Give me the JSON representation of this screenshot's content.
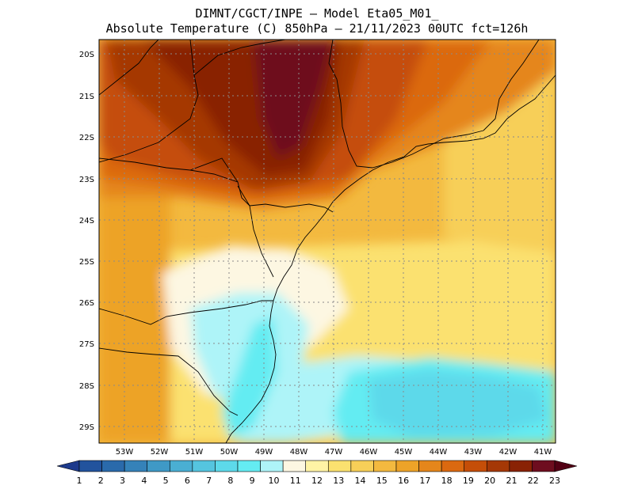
{
  "title": {
    "line1": "DIMNT/CGCT/INPE –  Model Eta05_M01_",
    "line2": "Absolute Temperature (C) 850hPa –  21/11/2023 00UTC fct=126h"
  },
  "map": {
    "variable": "Absolute Temperature (C) 850hPa",
    "lon_range": [
      -53.7,
      -40.6
    ],
    "lat_range": [
      -29.4,
      -19.8
    ],
    "lon_ticks": [
      "53W",
      "52W",
      "51W",
      "50W",
      "49W",
      "48W",
      "47W",
      "46W",
      "45W",
      "44W",
      "43W",
      "42W",
      "41W"
    ],
    "lat_ticks": [
      "20S",
      "21S",
      "22S",
      "23S",
      "24S",
      "25S",
      "26S",
      "27S",
      "28S",
      "29S"
    ],
    "gridlines": true
  },
  "colorbar": {
    "labels": [
      "1",
      "2",
      "3",
      "4",
      "5",
      "6",
      "7",
      "8",
      "9",
      "10",
      "11",
      "12",
      "13",
      "14",
      "15",
      "16",
      "17",
      "18",
      "19",
      "20",
      "21",
      "22",
      "23"
    ],
    "colors": [
      "#1d3a8c",
      "#22539d",
      "#2a6aab",
      "#3582b9",
      "#3f99c6",
      "#4aafd3",
      "#55c5df",
      "#5dd9ea",
      "#64ecf2",
      "#aef4f8",
      "#fdf7e2",
      "#fff3a5",
      "#fbe16f",
      "#f7cf58",
      "#f3b93f",
      "#eda328",
      "#e5861b",
      "#db6910",
      "#c54e08",
      "#a53806",
      "#892204",
      "#6e0d1f",
      "#520014"
    ]
  }
}
